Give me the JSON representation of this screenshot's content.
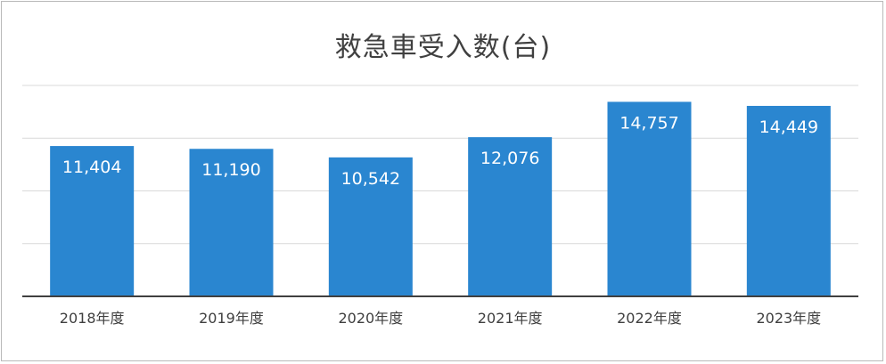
{
  "chart_data": {
    "type": "bar",
    "title": "救急車受入数(台)",
    "categories": [
      "2018年度",
      "2019年度",
      "2020年度",
      "2021年度",
      "2022年度",
      "2023年度"
    ],
    "values": [
      11404,
      11190,
      10542,
      12076,
      14757,
      14449
    ],
    "value_labels": [
      "11,404",
      "11,190",
      "10,542",
      "12,076",
      "14,757",
      "14,449"
    ],
    "ylim": [
      0,
      16000
    ],
    "grid": true,
    "bar_color": "#2a86d0",
    "label_color": "#ffffff"
  }
}
